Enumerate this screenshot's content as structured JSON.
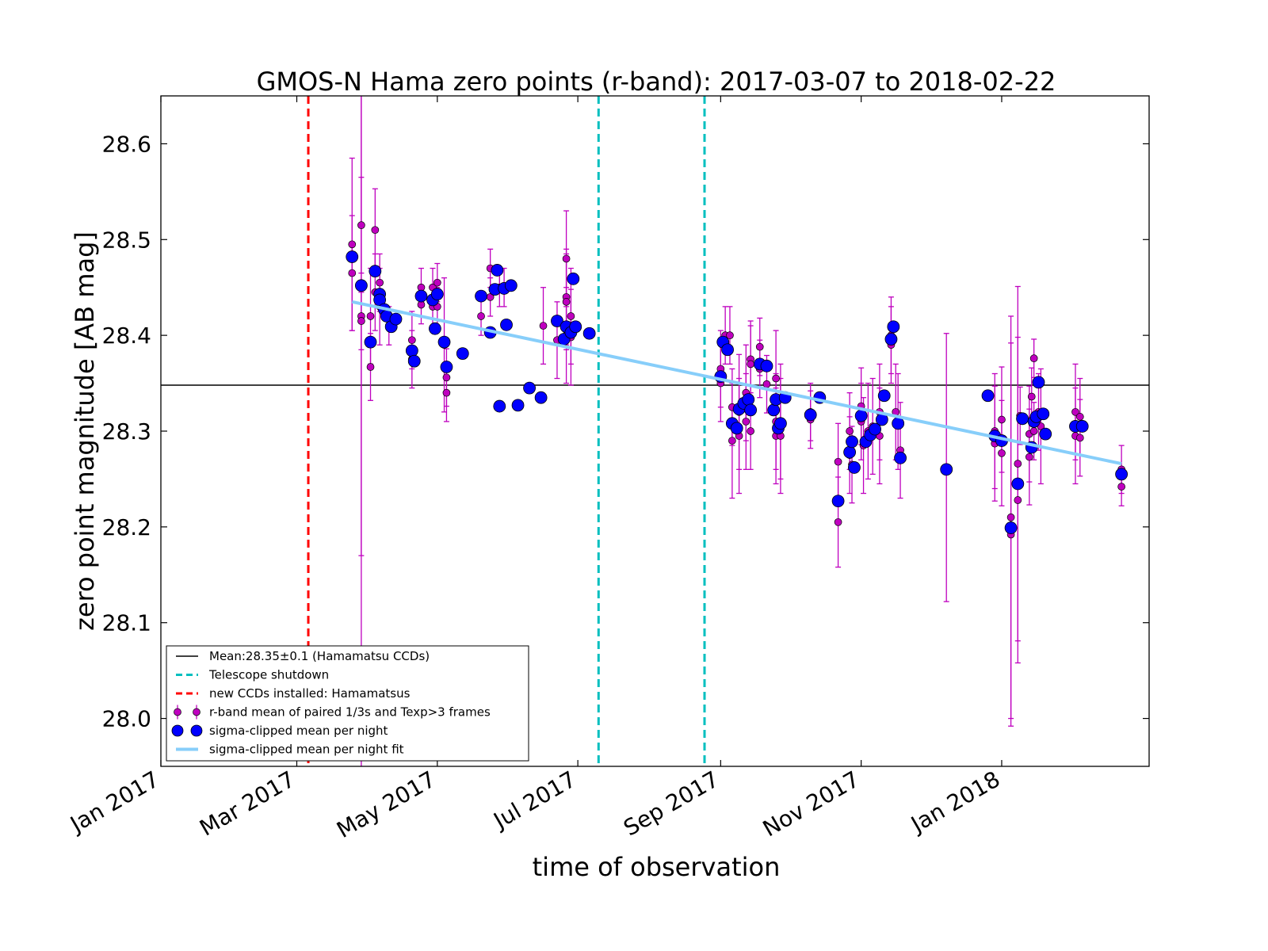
{
  "chart_data": {
    "type": "scatter",
    "title": "GMOS-N Hama zero points (r-band): 2017-03-07 to 2018-02-22",
    "xlabel": "time of observation",
    "ylabel": "zero point magnitude [AB mag]",
    "xlim": [
      "2017-01-01",
      "2018-03-06"
    ],
    "ylim": [
      27.95,
      28.65
    ],
    "grid": false,
    "legend_position": "lower-left",
    "yticks": [
      "28.0",
      "28.1",
      "28.2",
      "28.3",
      "28.4",
      "28.5",
      "28.6"
    ],
    "xticks": [
      {
        "date": "2017-01-01",
        "label": "Jan 2017"
      },
      {
        "date": "2017-03-01",
        "label": "Mar 2017"
      },
      {
        "date": "2017-05-01",
        "label": "May 2017"
      },
      {
        "date": "2017-07-01",
        "label": "Jul 2017"
      },
      {
        "date": "2017-09-01",
        "label": "Sep 2017"
      },
      {
        "date": "2017-11-01",
        "label": "Nov 2017"
      },
      {
        "date": "2018-01-01",
        "label": "Jan 2018"
      }
    ],
    "mean_line": {
      "value": 28.348,
      "label": "Mean:28.35±0.1 (Hamamatsu CCDs)",
      "color": "#000000"
    },
    "vlines": [
      {
        "date": "2017-03-06",
        "label": "new CCDs installed: Hamamatsus",
        "color": "#ff0000"
      },
      {
        "date": "2017-07-10",
        "label": "Telescope shutdown",
        "color": "#00bfbf"
      },
      {
        "date": "2017-08-25",
        "label": "",
        "color": "#00bfbf"
      }
    ],
    "fit_line": {
      "label": "sigma-clipped mean per night fit",
      "color": "#87cefa",
      "points": [
        {
          "x": "2017-03-25",
          "y": 28.435
        },
        {
          "x": "2018-02-22",
          "y": 28.266
        }
      ]
    },
    "series": [
      {
        "name": "r-band mean of paired 1/3s and Texp>3 frames",
        "color": "#bf00bf",
        "points": [
          {
            "x": "2017-03-25",
            "y": 28.495,
            "err": 0.09
          },
          {
            "x": "2017-03-25",
            "y": 28.465,
            "err": 0.06
          },
          {
            "x": "2017-03-29",
            "y": 28.515,
            "err": 0.05
          },
          {
            "x": "2017-03-29",
            "y": 28.42,
            "err": 0.25
          },
          {
            "x": "2017-03-29",
            "y": 28.415,
            "err": 0.03
          },
          {
            "x": "2017-04-02",
            "y": 28.42,
            "err": 0.05
          },
          {
            "x": "2017-04-02",
            "y": 28.367,
            "err": 0.035
          },
          {
            "x": "2017-04-04",
            "y": 28.51,
            "err": 0.043
          },
          {
            "x": "2017-04-04",
            "y": 28.445,
            "err": 0.04
          },
          {
            "x": "2017-04-06",
            "y": 28.455,
            "err": 0.03
          },
          {
            "x": "2017-04-06",
            "y": 28.43,
            "err": 0.04
          },
          {
            "x": "2017-04-10",
            "y": 28.41,
            "err": 0.02
          },
          {
            "x": "2017-04-20",
            "y": 28.395,
            "err": 0.03
          },
          {
            "x": "2017-04-20",
            "y": 28.375,
            "err": 0.03
          },
          {
            "x": "2017-04-24",
            "y": 28.45,
            "err": 0.02
          },
          {
            "x": "2017-04-24",
            "y": 28.432,
            "err": 0.02
          },
          {
            "x": "2017-04-29",
            "y": 28.45,
            "err": 0.02
          },
          {
            "x": "2017-04-29",
            "y": 28.43,
            "err": 0.02
          },
          {
            "x": "2017-05-01",
            "y": 28.455,
            "err": 0.02
          },
          {
            "x": "2017-05-01",
            "y": 28.43,
            "err": 0.02
          },
          {
            "x": "2017-05-04",
            "y": 28.39,
            "err": 0.07
          },
          {
            "x": "2017-05-05",
            "y": 28.356,
            "err": 0.03
          },
          {
            "x": "2017-05-05",
            "y": 28.34,
            "err": 0.03
          },
          {
            "x": "2017-05-20",
            "y": 28.42,
            "err": 0.02
          },
          {
            "x": "2017-05-24",
            "y": 28.47,
            "err": 0.02
          },
          {
            "x": "2017-05-24",
            "y": 28.44,
            "err": 0.02
          },
          {
            "x": "2017-05-28",
            "y": 28.45,
            "err": 0.02
          },
          {
            "x": "2017-05-30",
            "y": 28.45,
            "err": 0.02
          },
          {
            "x": "2017-06-16",
            "y": 28.41,
            "err": 0.04
          },
          {
            "x": "2017-06-22",
            "y": 28.395,
            "err": 0.04
          },
          {
            "x": "2017-06-26",
            "y": 28.48,
            "err": 0.05
          },
          {
            "x": "2017-06-26",
            "y": 28.44,
            "err": 0.05
          },
          {
            "x": "2017-06-26",
            "y": 28.435,
            "err": 0.05
          },
          {
            "x": "2017-06-26",
            "y": 28.4,
            "err": 0.05
          },
          {
            "x": "2017-06-28",
            "y": 28.42,
            "err": 0.05
          },
          {
            "x": "2017-06-28",
            "y": 28.398,
            "err": 0.05
          },
          {
            "x": "2017-09-01",
            "y": 28.365,
            "err": 0.04
          },
          {
            "x": "2017-09-01",
            "y": 28.35,
            "err": 0.04
          },
          {
            "x": "2017-09-03",
            "y": 28.4,
            "err": 0.03
          },
          {
            "x": "2017-09-05",
            "y": 28.4,
            "err": 0.03
          },
          {
            "x": "2017-09-06",
            "y": 28.325,
            "err": 0.04
          },
          {
            "x": "2017-09-06",
            "y": 28.29,
            "err": 0.06
          },
          {
            "x": "2017-09-09",
            "y": 28.32,
            "err": 0.06
          },
          {
            "x": "2017-09-09",
            "y": 28.295,
            "err": 0.06
          },
          {
            "x": "2017-09-12",
            "y": 28.34,
            "err": 0.05
          },
          {
            "x": "2017-09-12",
            "y": 28.31,
            "err": 0.05
          },
          {
            "x": "2017-09-14",
            "y": 28.375,
            "err": 0.04
          },
          {
            "x": "2017-09-14",
            "y": 28.37,
            "err": 0.04
          },
          {
            "x": "2017-09-14",
            "y": 28.3,
            "err": 0.04
          },
          {
            "x": "2017-09-18",
            "y": 28.388,
            "err": 0.03
          },
          {
            "x": "2017-09-18",
            "y": 28.365,
            "err": 0.03
          },
          {
            "x": "2017-09-21",
            "y": 28.349,
            "err": 0.03
          },
          {
            "x": "2017-09-25",
            "y": 28.355,
            "err": 0.05
          },
          {
            "x": "2017-09-25",
            "y": 28.31,
            "err": 0.05
          },
          {
            "x": "2017-09-25",
            "y": 28.295,
            "err": 0.05
          },
          {
            "x": "2017-09-27",
            "y": 28.31,
            "err": 0.06
          },
          {
            "x": "2017-09-27",
            "y": 28.295,
            "err": 0.06
          },
          {
            "x": "2017-10-10",
            "y": 28.32,
            "err": 0.03
          },
          {
            "x": "2017-10-10",
            "y": 28.312,
            "err": 0.03
          },
          {
            "x": "2017-10-22",
            "y": 28.268,
            "err": 0.04
          },
          {
            "x": "2017-10-22",
            "y": 28.205,
            "err": 0.047
          },
          {
            "x": "2017-10-27",
            "y": 28.3,
            "err": 0.04
          },
          {
            "x": "2017-10-27",
            "y": 28.275,
            "err": 0.04
          },
          {
            "x": "2017-10-28",
            "y": 28.265,
            "err": 0.04
          },
          {
            "x": "2017-11-01",
            "y": 28.326,
            "err": 0.04
          },
          {
            "x": "2017-11-01",
            "y": 28.31,
            "err": 0.04
          },
          {
            "x": "2017-11-02",
            "y": 28.285,
            "err": 0.05
          },
          {
            "x": "2017-11-04",
            "y": 28.3,
            "err": 0.05
          },
          {
            "x": "2017-11-06",
            "y": 28.305,
            "err": 0.05
          },
          {
            "x": "2017-11-09",
            "y": 28.32,
            "err": 0.05
          },
          {
            "x": "2017-11-09",
            "y": 28.295,
            "err": 0.05
          },
          {
            "x": "2017-11-14",
            "y": 28.4,
            "err": 0.04
          },
          {
            "x": "2017-11-14",
            "y": 28.39,
            "err": 0.04
          },
          {
            "x": "2017-11-16",
            "y": 28.32,
            "err": 0.05
          },
          {
            "x": "2017-11-17",
            "y": 28.31,
            "err": 0.05
          },
          {
            "x": "2017-11-18",
            "y": 28.28,
            "err": 0.05
          },
          {
            "x": "2017-12-08",
            "y": 28.262,
            "err": 0.14
          },
          {
            "x": "2017-12-29",
            "y": 28.3,
            "err": 0.06
          },
          {
            "x": "2017-12-29",
            "y": 28.287,
            "err": 0.06
          },
          {
            "x": "2018-01-01",
            "y": 28.312,
            "err": 0.055
          },
          {
            "x": "2018-01-01",
            "y": 28.277,
            "err": 0.055
          },
          {
            "x": "2018-01-05",
            "y": 28.21,
            "err": 0.21
          },
          {
            "x": "2018-01-05",
            "y": 28.192,
            "err": 0.2
          },
          {
            "x": "2018-01-08",
            "y": 28.266,
            "err": 0.185
          },
          {
            "x": "2018-01-08",
            "y": 28.228,
            "err": 0.17
          },
          {
            "x": "2018-01-09",
            "y": 28.316,
            "err": 0.03
          },
          {
            "x": "2018-01-13",
            "y": 28.297,
            "err": 0.05
          },
          {
            "x": "2018-01-13",
            "y": 28.273,
            "err": 0.05
          },
          {
            "x": "2018-01-14",
            "y": 28.336,
            "err": 0.03
          },
          {
            "x": "2018-01-15",
            "y": 28.376,
            "err": 0.02
          },
          {
            "x": "2018-01-15",
            "y": 28.3,
            "err": 0.03
          },
          {
            "x": "2018-01-17",
            "y": 28.32,
            "err": 0.04
          },
          {
            "x": "2018-01-18",
            "y": 28.305,
            "err": 0.06
          },
          {
            "x": "2018-02-02",
            "y": 28.32,
            "err": 0.05
          },
          {
            "x": "2018-02-02",
            "y": 28.295,
            "err": 0.05
          },
          {
            "x": "2018-02-04",
            "y": 28.315,
            "err": 0.04
          },
          {
            "x": "2018-02-04",
            "y": 28.293,
            "err": 0.04
          },
          {
            "x": "2018-02-22",
            "y": 28.26,
            "err": 0.025
          },
          {
            "x": "2018-02-22",
            "y": 28.242,
            "err": 0.02
          }
        ]
      },
      {
        "name": "sigma-clipped mean per night",
        "color": "#0000ff",
        "points": [
          {
            "x": "2017-03-25",
            "y": 28.482
          },
          {
            "x": "2017-03-29",
            "y": 28.452
          },
          {
            "x": "2017-04-02",
            "y": 28.393
          },
          {
            "x": "2017-04-04",
            "y": 28.467
          },
          {
            "x": "2017-04-06",
            "y": 28.443
          },
          {
            "x": "2017-04-06",
            "y": 28.437
          },
          {
            "x": "2017-04-08",
            "y": 28.427
          },
          {
            "x": "2017-04-09",
            "y": 28.42
          },
          {
            "x": "2017-04-11",
            "y": 28.409
          },
          {
            "x": "2017-04-13",
            "y": 28.417
          },
          {
            "x": "2017-04-20",
            "y": 28.384
          },
          {
            "x": "2017-04-21",
            "y": 28.373
          },
          {
            "x": "2017-04-24",
            "y": 28.441
          },
          {
            "x": "2017-04-29",
            "y": 28.437
          },
          {
            "x": "2017-04-30",
            "y": 28.407
          },
          {
            "x": "2017-05-01",
            "y": 28.443
          },
          {
            "x": "2017-05-04",
            "y": 28.393
          },
          {
            "x": "2017-05-05",
            "y": 28.367
          },
          {
            "x": "2017-05-12",
            "y": 28.381
          },
          {
            "x": "2017-05-20",
            "y": 28.441
          },
          {
            "x": "2017-05-24",
            "y": 28.403
          },
          {
            "x": "2017-05-26",
            "y": 28.448
          },
          {
            "x": "2017-05-27",
            "y": 28.468
          },
          {
            "x": "2017-05-28",
            "y": 28.326
          },
          {
            "x": "2017-05-30",
            "y": 28.449
          },
          {
            "x": "2017-05-31",
            "y": 28.411
          },
          {
            "x": "2017-06-02",
            "y": 28.452
          },
          {
            "x": "2017-06-05",
            "y": 28.327
          },
          {
            "x": "2017-06-10",
            "y": 28.345
          },
          {
            "x": "2017-06-15",
            "y": 28.335
          },
          {
            "x": "2017-06-22",
            "y": 28.415
          },
          {
            "x": "2017-06-25",
            "y": 28.396
          },
          {
            "x": "2017-06-26",
            "y": 28.409
          },
          {
            "x": "2017-06-28",
            "y": 28.403
          },
          {
            "x": "2017-06-29",
            "y": 28.459
          },
          {
            "x": "2017-06-30",
            "y": 28.409
          },
          {
            "x": "2017-07-06",
            "y": 28.402
          },
          {
            "x": "2017-09-01",
            "y": 28.357
          },
          {
            "x": "2017-09-02",
            "y": 28.393
          },
          {
            "x": "2017-09-04",
            "y": 28.385
          },
          {
            "x": "2017-09-06",
            "y": 28.308
          },
          {
            "x": "2017-09-08",
            "y": 28.303
          },
          {
            "x": "2017-09-09",
            "y": 28.323
          },
          {
            "x": "2017-09-11",
            "y": 28.329
          },
          {
            "x": "2017-09-13",
            "y": 28.333
          },
          {
            "x": "2017-09-14",
            "y": 28.322
          },
          {
            "x": "2017-09-18",
            "y": 28.37
          },
          {
            "x": "2017-09-21",
            "y": 28.368
          },
          {
            "x": "2017-09-24",
            "y": 28.322
          },
          {
            "x": "2017-09-25",
            "y": 28.333
          },
          {
            "x": "2017-09-26",
            "y": 28.303
          },
          {
            "x": "2017-09-27",
            "y": 28.308
          },
          {
            "x": "2017-09-29",
            "y": 28.335
          },
          {
            "x": "2017-10-10",
            "y": 28.317
          },
          {
            "x": "2017-10-14",
            "y": 28.335
          },
          {
            "x": "2017-10-22",
            "y": 28.227
          },
          {
            "x": "2017-10-27",
            "y": 28.278
          },
          {
            "x": "2017-10-28",
            "y": 28.289
          },
          {
            "x": "2017-10-29",
            "y": 28.262
          },
          {
            "x": "2017-11-01",
            "y": 28.316
          },
          {
            "x": "2017-11-03",
            "y": 28.289
          },
          {
            "x": "2017-11-05",
            "y": 28.296
          },
          {
            "x": "2017-11-07",
            "y": 28.302
          },
          {
            "x": "2017-11-10",
            "y": 28.312
          },
          {
            "x": "2017-11-11",
            "y": 28.337
          },
          {
            "x": "2017-11-14",
            "y": 28.396
          },
          {
            "x": "2017-11-15",
            "y": 28.409
          },
          {
            "x": "2017-11-17",
            "y": 28.308
          },
          {
            "x": "2017-11-18",
            "y": 28.272
          },
          {
            "x": "2017-12-08",
            "y": 28.26
          },
          {
            "x": "2017-12-26",
            "y": 28.337
          },
          {
            "x": "2017-12-29",
            "y": 28.295
          },
          {
            "x": "2018-01-01",
            "y": 28.29
          },
          {
            "x": "2018-01-05",
            "y": 28.199
          },
          {
            "x": "2018-01-08",
            "y": 28.245
          },
          {
            "x": "2018-01-10",
            "y": 28.313
          },
          {
            "x": "2018-01-14",
            "y": 28.283
          },
          {
            "x": "2018-01-15",
            "y": 28.31
          },
          {
            "x": "2018-01-16",
            "y": 28.315
          },
          {
            "x": "2018-01-17",
            "y": 28.351
          },
          {
            "x": "2018-01-19",
            "y": 28.318
          },
          {
            "x": "2018-01-20",
            "y": 28.297
          },
          {
            "x": "2018-02-02",
            "y": 28.305
          },
          {
            "x": "2018-02-05",
            "y": 28.305
          },
          {
            "x": "2018-02-22",
            "y": 28.255
          }
        ]
      }
    ]
  }
}
